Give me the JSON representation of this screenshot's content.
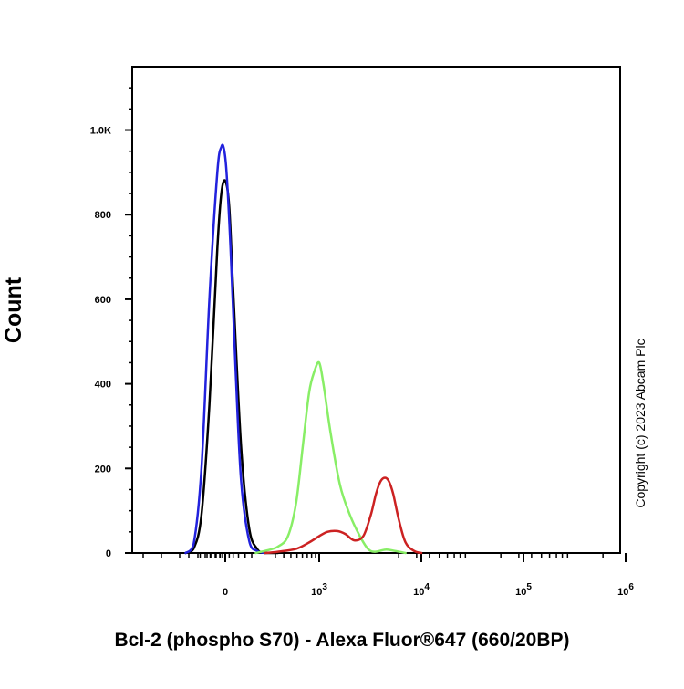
{
  "chart_data": {
    "type": "line",
    "title": "",
    "xlabel": "Bcl-2 (phospho S70) - Alexa Fluor®647 (660/20BP)",
    "ylabel": "Count",
    "x_scale": "biexponential",
    "xlim": [
      -1000,
      1000000
    ],
    "ylim": [
      0,
      1150
    ],
    "grid": false,
    "legend": "none",
    "y_ticks": [
      {
        "value": 0,
        "label": "0"
      },
      {
        "value": 200,
        "label": "200"
      },
      {
        "value": 400,
        "label": "400"
      },
      {
        "value": 600,
        "label": "600"
      },
      {
        "value": 800,
        "label": "800"
      },
      {
        "value": 1000,
        "label": "1.0K"
      }
    ],
    "x_ticks": [
      {
        "value": 0,
        "base": "0",
        "exp": ""
      },
      {
        "value": 1000,
        "base": "10",
        "exp": "3"
      },
      {
        "value": 10000,
        "base": "10",
        "exp": "4"
      },
      {
        "value": 100000,
        "base": "10",
        "exp": "5"
      },
      {
        "value": 1000000,
        "base": "10",
        "exp": "6"
      }
    ],
    "series": [
      {
        "color": "#000000",
        "x": [
          -300,
          -240,
          -180,
          -120,
          -60,
          -30,
          0,
          30,
          60,
          120,
          180,
          240,
          300,
          400
        ],
        "y": [
          0,
          10,
          90,
          350,
          720,
          850,
          880,
          820,
          620,
          250,
          60,
          10,
          0,
          0
        ]
      },
      {
        "color": "#2222dd",
        "x": [
          -300,
          -240,
          -180,
          -120,
          -60,
          -30,
          -10,
          10,
          40,
          80,
          120,
          180,
          240,
          300
        ],
        "y": [
          0,
          20,
          200,
          600,
          900,
          960,
          955,
          900,
          720,
          420,
          170,
          30,
          5,
          0
        ]
      },
      {
        "color": "#88ee66",
        "x": [
          230,
          300,
          400,
          500,
          600,
          700,
          800,
          900,
          1000,
          1100,
          1300,
          1600,
          2000,
          2500,
          3000,
          3500,
          4500,
          5500,
          7000
        ],
        "y": [
          0,
          5,
          15,
          40,
          120,
          260,
          380,
          430,
          450,
          400,
          280,
          160,
          90,
          40,
          10,
          3,
          8,
          5,
          0
        ]
      },
      {
        "color": "#cc2222",
        "x": [
          300,
          400,
          600,
          800,
          1000,
          1200,
          1500,
          1800,
          2200,
          2700,
          3200,
          3600,
          4000,
          4400,
          4800,
          5300,
          6000,
          7000,
          8500,
          10000
        ],
        "y": [
          0,
          3,
          10,
          25,
          40,
          50,
          52,
          45,
          30,
          40,
          90,
          140,
          170,
          178,
          170,
          140,
          80,
          25,
          5,
          0
        ]
      }
    ]
  },
  "copyright_text": "Copyright (c) 2023 Abcam Plc"
}
